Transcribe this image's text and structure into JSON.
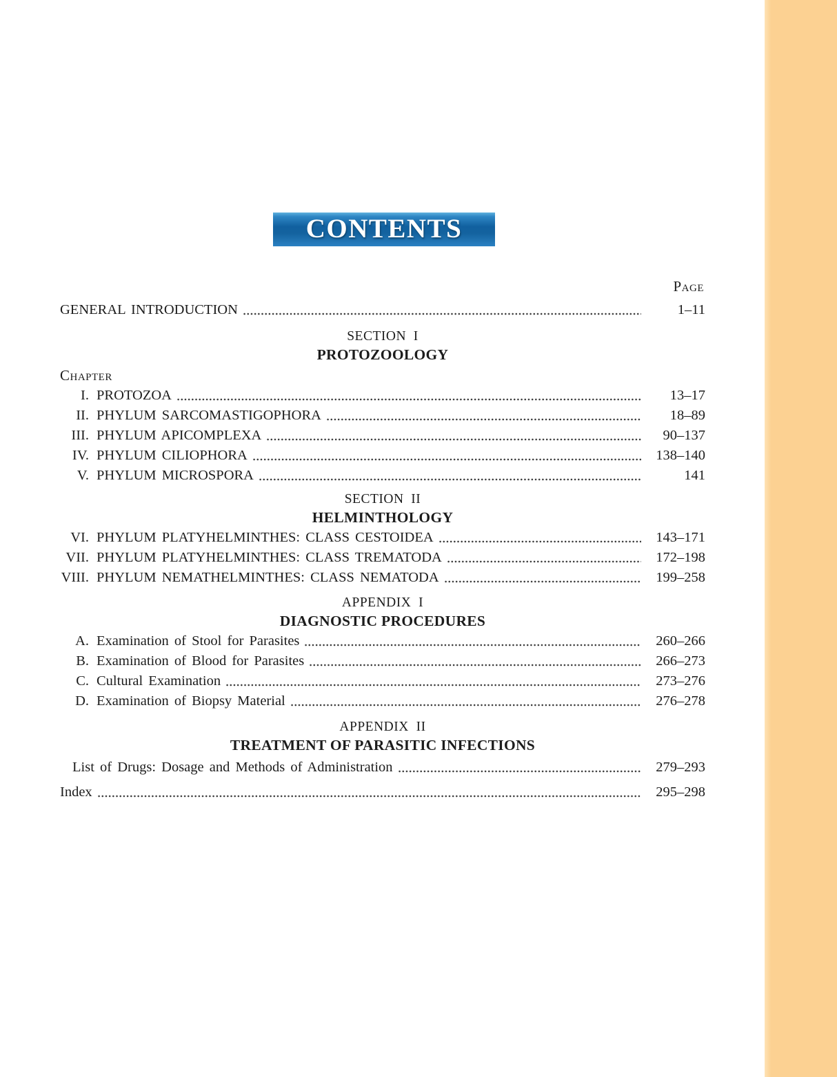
{
  "banner": {
    "title": "CONTENTS"
  },
  "labels": {
    "page": "Page",
    "chapter": "Chapter"
  },
  "colors": {
    "stripe": "#fcd192",
    "banner_light": "#60b1de",
    "banner_dark": "#11609f",
    "banner_mid": "#2a80c2",
    "banner_text": "#ffffff",
    "text": "#1c1c1c"
  },
  "intro": {
    "title": "GENERAL INTRODUCTION",
    "pages": "1–11"
  },
  "sections": [
    {
      "heading": "SECTION  I",
      "title": "PROTOZOOLOGY",
      "items": [
        {
          "num": "I.",
          "title": "PROTOZOA",
          "pages": "13–17"
        },
        {
          "num": "II.",
          "title": "PHYLUM SARCOMASTIGOPHORA",
          "pages": "18–89"
        },
        {
          "num": "III.",
          "title": "PHYLUM APICOMPLEXA",
          "pages": "90–137"
        },
        {
          "num": "IV.",
          "title": "PHYLUM CILIOPHORA",
          "pages": "138–140"
        },
        {
          "num": "V.",
          "title": "PHYLUM MICROSPORA",
          "pages": "141"
        }
      ]
    },
    {
      "heading": "SECTION  II",
      "title": "HELMINTHOLOGY",
      "items": [
        {
          "num": "VI.",
          "title": "PHYLUM PLATYHELMINTHES: CLASS CESTOIDEA",
          "pages": "143–171"
        },
        {
          "num": "VII.",
          "title": "PHYLUM PLATYHELMINTHES: CLASS TREMATODA",
          "pages": "172–198"
        },
        {
          "num": "VIII.",
          "title": "PHYLUM NEMATHELMINTHES: CLASS NEMATODA",
          "pages": "199–258"
        }
      ]
    },
    {
      "heading": "APPENDIX  I",
      "title": "DIAGNOSTIC PROCEDURES",
      "items": [
        {
          "num": "A.",
          "title": "Examination of Stool for Parasites",
          "pages": "260–266"
        },
        {
          "num": "B.",
          "title": "Examination of Blood for Parasites",
          "pages": "266–273"
        },
        {
          "num": "C.",
          "title": "Cultural Examination",
          "pages": "273–276"
        },
        {
          "num": "D.",
          "title": "Examination of Biopsy Material",
          "pages": "276–278"
        }
      ]
    },
    {
      "heading": "APPENDIX  II",
      "title": "TREATMENT OF PARASITIC INFECTIONS",
      "items": [
        {
          "num": "",
          "title": "List of Drugs: Dosage and Methods of Administration",
          "pages": "279–293"
        }
      ]
    }
  ],
  "index": {
    "title": "Index",
    "pages": "295–298"
  }
}
